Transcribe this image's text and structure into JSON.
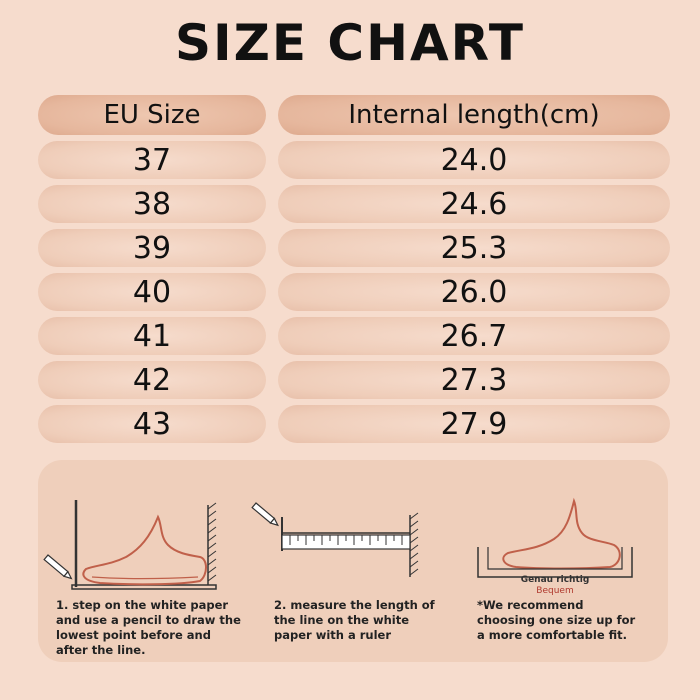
{
  "title": "SIZE CHART",
  "table": {
    "headers": [
      "EU Size",
      "Internal length(cm)"
    ],
    "rows": [
      [
        "37",
        "24.0"
      ],
      [
        "38",
        "24.6"
      ],
      [
        "39",
        "25.3"
      ],
      [
        "40",
        "26.0"
      ],
      [
        "41",
        "26.7"
      ],
      [
        "42",
        "27.3"
      ],
      [
        "43",
        "27.9"
      ]
    ]
  },
  "instructions": {
    "step1": "1. step on the white paper and use a pencil to draw the lowest point before and after the line.",
    "step2": "2. measure the length of the line on the white paper with a ruler",
    "step3": "*We recommend choosing one size up for a more comfortable fit.",
    "fit_labels": {
      "exact": "Genau richtig",
      "comfortable": "Bequem"
    }
  },
  "colors": {
    "background": "#f6dccd",
    "foot_outline": "#c0604a",
    "fit_label_red": "#b03a2e"
  }
}
